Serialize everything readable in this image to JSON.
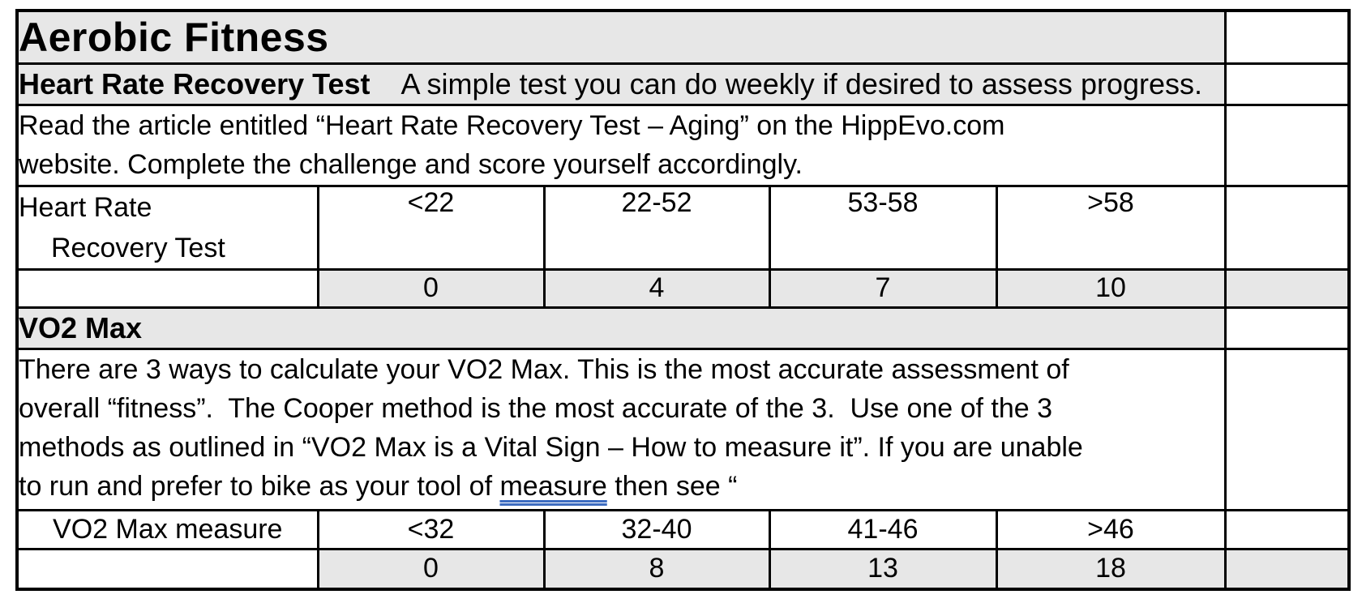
{
  "doc": {
    "title": "Aerobic Fitness",
    "hrr": {
      "heading_bold": "Heart Rate Recovery Test",
      "heading_rest": "A simple test you can do weekly if desired to assess progress.",
      "instructions_lines": [
        "Read the article entitled “Heart Rate Recovery Test – Aging” on the HippEvo.com",
        "website. Complete the challenge and score yourself accordingly."
      ],
      "row_label_line1": "Heart Rate",
      "row_label_line2": "Recovery Test",
      "ranges": [
        "<22",
        "22-52",
        "53-58",
        ">58"
      ],
      "scores": [
        "0",
        "4",
        "7",
        "10"
      ]
    },
    "vo2": {
      "heading": "VO2 Max",
      "description_lines": [
        "There are 3 ways to calculate your VO2 Max. This is the most accurate assessment of",
        "overall “fitness”.  The Cooper method is the most accurate of the 3.  Use one of the 3",
        "methods as outlined in “VO2 Max is a Vital Sign – How to measure it”. If you are unable"
      ],
      "description_line4_pre": "to run and prefer to bike as your tool of ",
      "description_line4_underlined": "measure",
      "description_line4_post": " then see “",
      "row_label": "VO2 Max measure",
      "ranges": [
        "<32",
        "32-40",
        "41-46",
        ">46"
      ],
      "scores": [
        "0",
        "8",
        "13",
        "18"
      ]
    },
    "colors": {
      "row_shading": "#e7e7e7",
      "border": "#000000",
      "grammar_underline": "#3d6cc0"
    }
  }
}
